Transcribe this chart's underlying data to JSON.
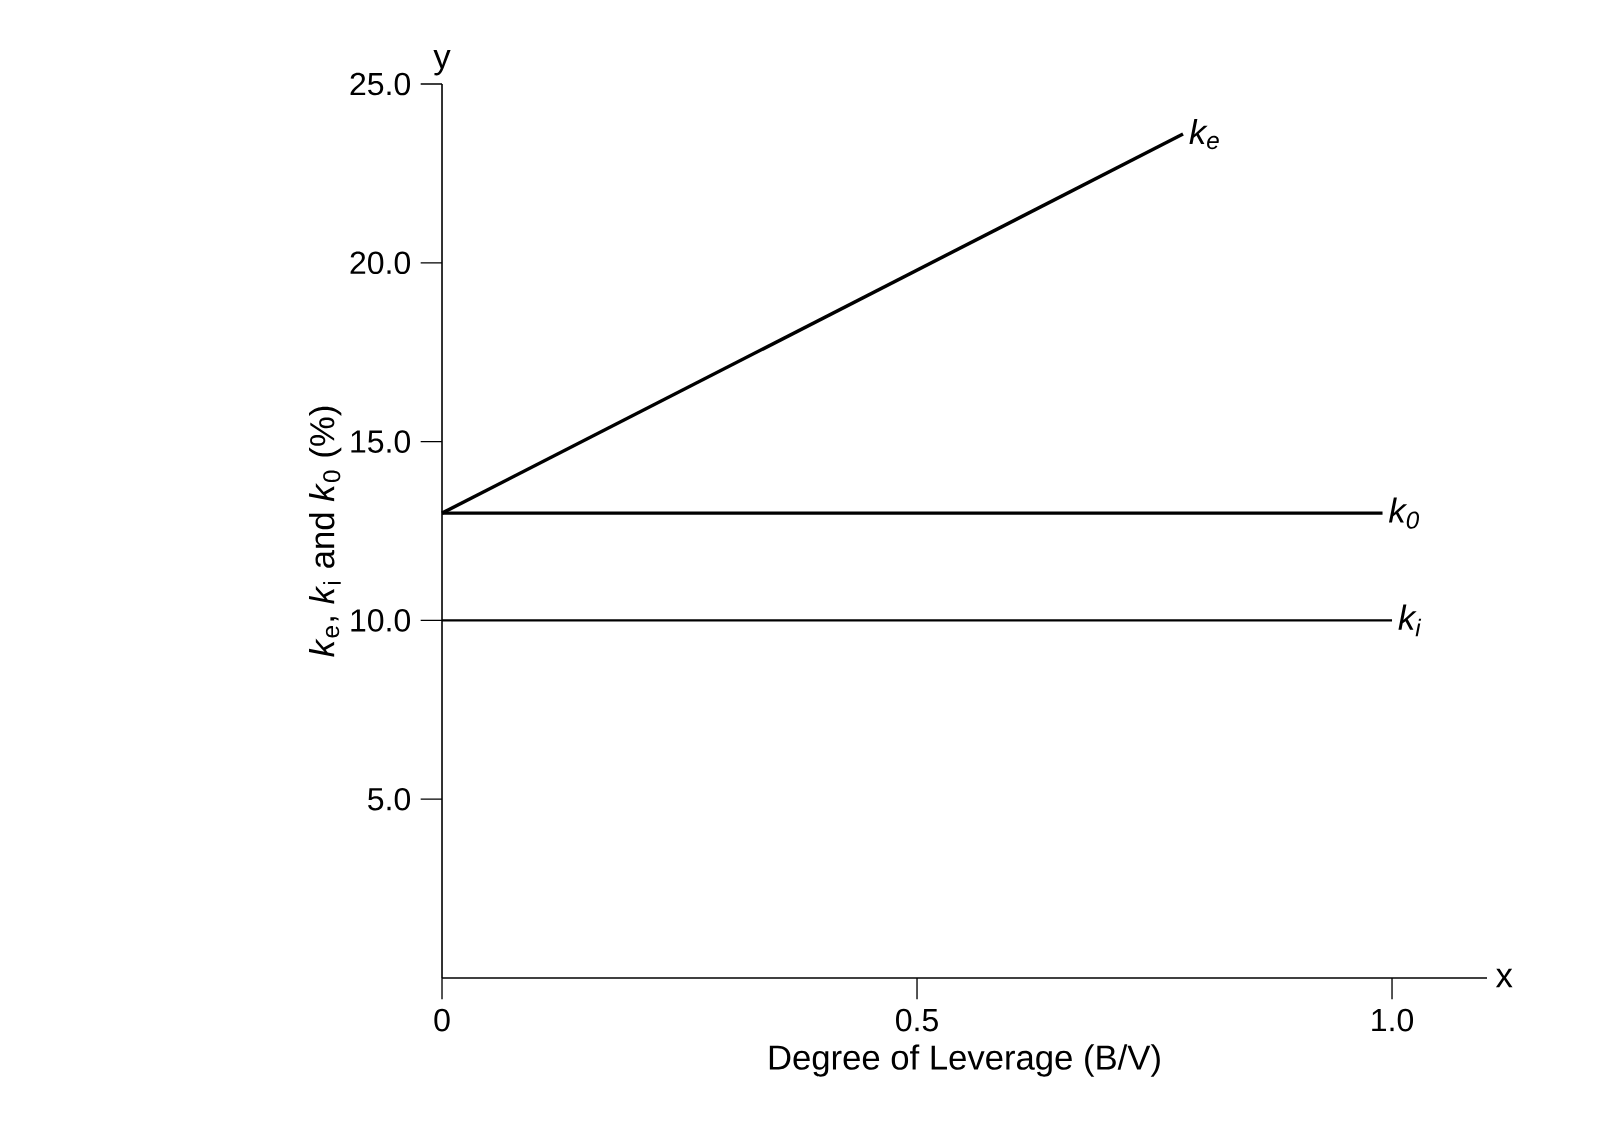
{
  "chart_data": {
    "type": "line",
    "xlabel": "Degree of Leverage (B/V)",
    "ylabel": "*k*$_{e}$, *k*$_{i}$ and *k*$_{0}$ (%)",
    "xlim": [
      0,
      1.1
    ],
    "ylim": [
      0,
      25
    ],
    "xticks": [
      0,
      0.5,
      {
        "value": 1,
        "label": "1.0"
      }
    ],
    "yticks": [
      {
        "value": 5,
        "label": "5.0"
      },
      {
        "value": 10,
        "label": "10.0"
      },
      {
        "value": 15,
        "label": "15.0"
      },
      {
        "value": 20,
        "label": "20.0"
      },
      {
        "value": 25,
        "label": "25.0"
      }
    ],
    "annotations": [
      "x",
      "y"
    ],
    "legend": false,
    "series": [
      {
        "name": "*k*$_{e}$",
        "color": "#000000",
        "x": [
          0,
          0.78
        ],
        "values": [
          13,
          23.6
        ]
      },
      {
        "name": "*k*$_{0}$",
        "color": "#000000",
        "x": [
          0,
          0.99
        ],
        "values": [
          13,
          13
        ]
      },
      {
        "name": "*k*$_{i}$",
        "color": "#000000",
        "x": [
          0,
          1.0
        ],
        "values": [
          10,
          10
        ]
      }
    ]
  }
}
